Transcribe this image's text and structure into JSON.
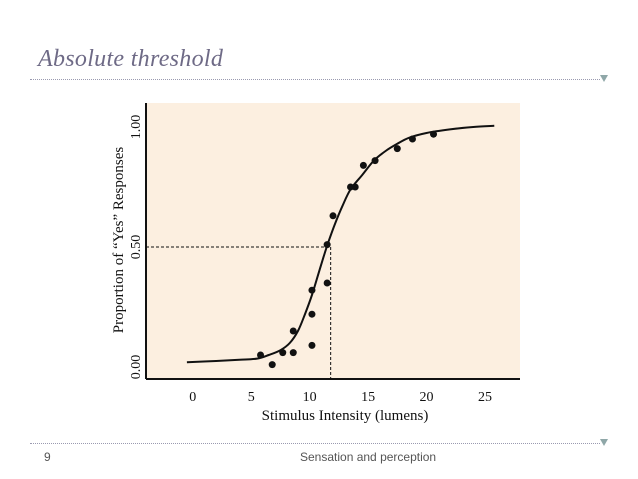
{
  "slide": {
    "title": "Absolute threshold",
    "page_number": "9",
    "footer_text": "Sensation and perception"
  },
  "colors": {
    "title": "#6e6a86",
    "plot_background": "#fcefe0",
    "curve": "#111111",
    "points": "#111111"
  },
  "chart_data": {
    "type": "scatter",
    "title": "",
    "xlabel": "Stimulus Intensity (lumens)",
    "ylabel": "Proportion of “Yes” Responses",
    "xlim": [
      -4,
      28
    ],
    "ylim": [
      -0.05,
      1.1
    ],
    "x_ticks": [
      0,
      5,
      10,
      15,
      20,
      25
    ],
    "y_ticks": [
      0.0,
      0.5,
      1.0
    ],
    "y_tick_labels": [
      "0.00",
      "0.50",
      "1.00"
    ],
    "grid": false,
    "threshold": {
      "x": 11.8,
      "y": 0.5
    },
    "points": [
      {
        "x": 5.8,
        "y": 0.05
      },
      {
        "x": 6.8,
        "y": 0.01
      },
      {
        "x": 7.7,
        "y": 0.06
      },
      {
        "x": 8.6,
        "y": 0.06
      },
      {
        "x": 8.6,
        "y": 0.15
      },
      {
        "x": 10.2,
        "y": 0.09
      },
      {
        "x": 10.2,
        "y": 0.22
      },
      {
        "x": 10.2,
        "y": 0.32
      },
      {
        "x": 11.5,
        "y": 0.35
      },
      {
        "x": 11.5,
        "y": 0.51
      },
      {
        "x": 12.0,
        "y": 0.63
      },
      {
        "x": 13.5,
        "y": 0.75
      },
      {
        "x": 13.9,
        "y": 0.75
      },
      {
        "x": 14.6,
        "y": 0.84
      },
      {
        "x": 15.6,
        "y": 0.86
      },
      {
        "x": 17.5,
        "y": 0.91
      },
      {
        "x": 18.8,
        "y": 0.95
      },
      {
        "x": 20.6,
        "y": 0.97
      }
    ],
    "curve": [
      [
        -0.5,
        0.02
      ],
      [
        2,
        0.025
      ],
      [
        4,
        0.03
      ],
      [
        5.5,
        0.035
      ],
      [
        6.5,
        0.05
      ],
      [
        7.5,
        0.07
      ],
      [
        8.3,
        0.1
      ],
      [
        9,
        0.15
      ],
      [
        9.6,
        0.22
      ],
      [
        10.2,
        0.3
      ],
      [
        10.7,
        0.38
      ],
      [
        11.2,
        0.46
      ],
      [
        11.6,
        0.52
      ],
      [
        12.2,
        0.6
      ],
      [
        12.8,
        0.67
      ],
      [
        13.5,
        0.74
      ],
      [
        14.5,
        0.8
      ],
      [
        15.5,
        0.86
      ],
      [
        16.5,
        0.9
      ],
      [
        17.5,
        0.93
      ],
      [
        18.5,
        0.955
      ],
      [
        20,
        0.975
      ],
      [
        22,
        0.99
      ],
      [
        24,
        1.0
      ],
      [
        25.8,
        1.005
      ]
    ]
  }
}
